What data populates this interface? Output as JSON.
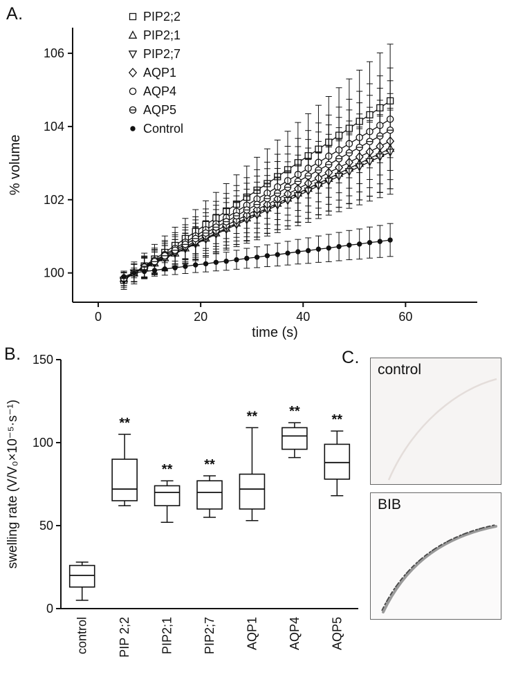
{
  "panels": {
    "a": {
      "label": "A."
    },
    "b": {
      "label": "B."
    },
    "c": {
      "label": "C.",
      "images": [
        {
          "label": "control"
        },
        {
          "label": "BIB"
        }
      ]
    }
  },
  "chart_data": [
    {
      "id": "timecourse",
      "type": "line",
      "title": "",
      "xlabel": "time (s)",
      "ylabel": "% volume",
      "xlim": [
        0,
        60
      ],
      "ylim": [
        100,
        106
      ],
      "xticks": [
        0,
        20,
        40,
        60
      ],
      "yticks": [
        100,
        102,
        104,
        106
      ],
      "legend_position": "top-left",
      "grid": false,
      "x": [
        5,
        7,
        9,
        11,
        13,
        15,
        17,
        19,
        21,
        23,
        25,
        27,
        29,
        31,
        33,
        35,
        37,
        39,
        41,
        43,
        45,
        47,
        49,
        51,
        53,
        55,
        57
      ],
      "series": [
        {
          "name": "PIP2;2",
          "marker": "square",
          "values": [
            99.8,
            100.0,
            100.19,
            100.38,
            100.56,
            100.75,
            100.94,
            101.13,
            101.32,
            101.5,
            101.69,
            101.88,
            102.07,
            102.26,
            102.44,
            102.63,
            102.82,
            103.01,
            103.2,
            103.38,
            103.57,
            103.76,
            103.95,
            104.14,
            104.32,
            104.51,
            104.7
          ],
          "err": {
            "start": 0.25,
            "end": 1.55
          }
        },
        {
          "name": "PIP2;1",
          "marker": "triangle-up",
          "values": [
            99.85,
            100.0,
            100.14,
            100.27,
            100.41,
            100.54,
            100.68,
            100.82,
            100.95,
            101.09,
            101.22,
            101.36,
            101.5,
            101.63,
            101.77,
            101.9,
            102.04,
            102.18,
            102.31,
            102.45,
            102.58,
            102.72,
            102.86,
            102.99,
            103.13,
            103.26,
            103.4
          ],
          "err": {
            "start": 0.2,
            "end": 1.1
          }
        },
        {
          "name": "PIP2;7",
          "marker": "triangle-down",
          "values": [
            99.8,
            100.0,
            100.13,
            100.26,
            100.4,
            100.53,
            100.66,
            100.79,
            100.92,
            101.06,
            101.19,
            101.32,
            101.45,
            101.58,
            101.72,
            101.85,
            101.98,
            102.11,
            102.24,
            102.38,
            102.51,
            102.64,
            102.77,
            102.9,
            103.04,
            103.17,
            103.3
          ],
          "err": {
            "start": 0.2,
            "end": 1.15
          }
        },
        {
          "name": "AQP1",
          "marker": "diamond",
          "values": [
            99.85,
            100.0,
            100.14,
            100.29,
            100.43,
            100.58,
            100.72,
            100.86,
            101.01,
            101.15,
            101.3,
            101.44,
            101.58,
            101.73,
            101.87,
            102.02,
            102.16,
            102.3,
            102.45,
            102.59,
            102.74,
            102.88,
            103.02,
            103.17,
            103.31,
            103.46,
            103.6
          ],
          "err": {
            "start": 0.2,
            "end": 1.3
          }
        },
        {
          "name": "AQP4",
          "marker": "circle",
          "values": [
            99.85,
            100.0,
            100.17,
            100.34,
            100.5,
            100.67,
            100.84,
            101.01,
            101.18,
            101.34,
            101.51,
            101.68,
            101.85,
            102.02,
            102.18,
            102.35,
            102.52,
            102.69,
            102.86,
            103.02,
            103.19,
            103.36,
            103.53,
            103.7,
            103.86,
            104.03,
            104.2
          ],
          "err": {
            "start": 0.2,
            "end": 1.4
          }
        },
        {
          "name": "AQP5",
          "marker": "circle-hline",
          "values": [
            99.85,
            100.0,
            100.16,
            100.31,
            100.47,
            100.62,
            100.78,
            100.94,
            101.09,
            101.25,
            101.4,
            101.56,
            101.72,
            101.87,
            102.03,
            102.18,
            102.34,
            102.5,
            102.65,
            102.81,
            102.96,
            103.12,
            103.28,
            103.43,
            103.59,
            103.74,
            103.9
          ],
          "err": {
            "start": 0.2,
            "end": 1.35
          }
        },
        {
          "name": "Control",
          "marker": "dot",
          "values": [
            99.9,
            100.0,
            100.04,
            100.07,
            100.11,
            100.14,
            100.18,
            100.22,
            100.25,
            100.29,
            100.32,
            100.36,
            100.4,
            100.43,
            100.47,
            100.5,
            100.54,
            100.58,
            100.61,
            100.65,
            100.68,
            100.72,
            100.76,
            100.79,
            100.83,
            100.86,
            100.9
          ],
          "err": {
            "start": 0.12,
            "end": 0.45
          }
        }
      ]
    },
    {
      "id": "boxplot",
      "type": "box",
      "title": "",
      "xlabel": "",
      "ylabel": "swelling rate (V/V₀×10⁻⁵·s⁻¹)",
      "ylim": [
        0,
        150
      ],
      "yticks": [
        0,
        50,
        100,
        150
      ],
      "grid": false,
      "categories": [
        "control",
        "PIP 2;2",
        "PIP2;1",
        "PIP2;7",
        "AQP1",
        "AQP4",
        "AQP5"
      ],
      "boxes": [
        {
          "min": 5,
          "q1": 13,
          "median": 20,
          "q3": 26,
          "max": 28,
          "sig": ""
        },
        {
          "min": 62,
          "q1": 65,
          "median": 72,
          "q3": 90,
          "max": 105,
          "sig": "**"
        },
        {
          "min": 52,
          "q1": 62,
          "median": 70,
          "q3": 74,
          "max": 77,
          "sig": "**"
        },
        {
          "min": 55,
          "q1": 60,
          "median": 70,
          "q3": 77,
          "max": 80,
          "sig": "**"
        },
        {
          "min": 53,
          "q1": 60,
          "median": 72,
          "q3": 81,
          "max": 109,
          "sig": "**"
        },
        {
          "min": 91,
          "q1": 96,
          "median": 104,
          "q3": 109,
          "max": 112,
          "sig": "**"
        },
        {
          "min": 68,
          "q1": 78,
          "median": 88,
          "q3": 99,
          "max": 107,
          "sig": "**"
        }
      ]
    }
  ],
  "colors": {
    "ink": "#111111",
    "background": "#ffffff"
  }
}
